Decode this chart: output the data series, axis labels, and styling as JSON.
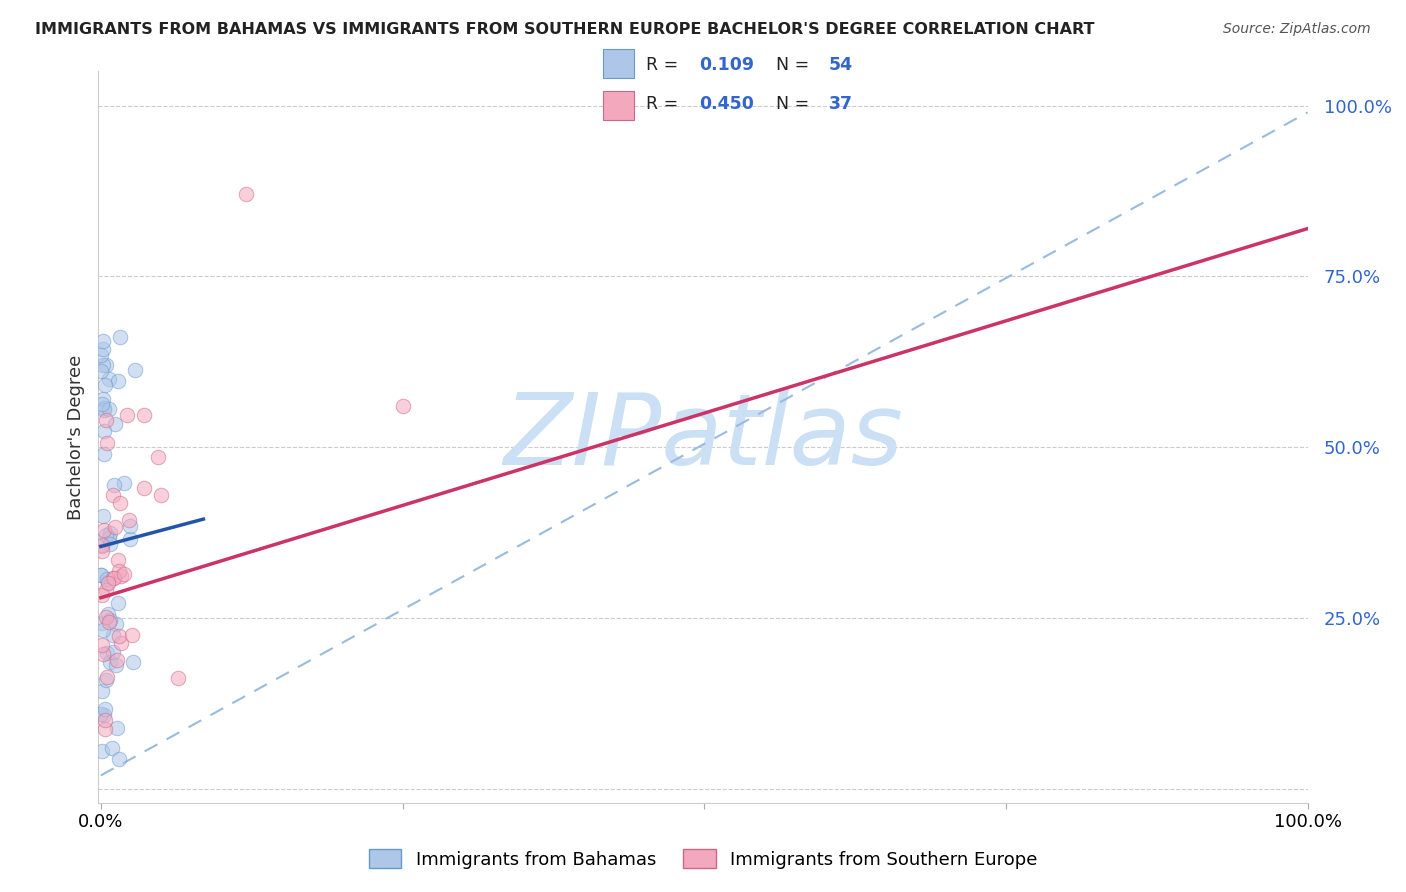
{
  "title": "IMMIGRANTS FROM BAHAMAS VS IMMIGRANTS FROM SOUTHERN EUROPE BACHELOR'S DEGREE CORRELATION CHART",
  "source": "Source: ZipAtlas.com",
  "ylabel": "Bachelor's Degree",
  "legend_entries": [
    {
      "label": "Immigrants from Bahamas",
      "color": "#aec6e8",
      "edge_color": "#6699cc",
      "R": 0.109,
      "N": 54
    },
    {
      "label": "Immigrants from Southern Europe",
      "color": "#f4a8be",
      "edge_color": "#cc6688",
      "R": 0.45,
      "N": 37
    }
  ],
  "background_color": "#ffffff",
  "watermark": "ZIPatlas",
  "watermark_color": "#cce0f5",
  "blue_line_x0": 0.0,
  "blue_line_x1": 0.085,
  "blue_line_y0": 0.355,
  "blue_line_y1": 0.395,
  "pink_line_x0": 0.0,
  "pink_line_x1": 1.0,
  "pink_line_y0": 0.28,
  "pink_line_y1": 0.82,
  "dashed_line_x0": 0.0,
  "dashed_line_x1": 1.0,
  "dashed_line_y0": 0.02,
  "dashed_line_y1": 0.99,
  "xlim_min": -0.002,
  "xlim_max": 1.0,
  "ylim_min": -0.02,
  "ylim_max": 1.05,
  "dot_size": 110,
  "dot_alpha": 0.55,
  "blue_color": "#2255aa",
  "pink_color": "#cc3366",
  "dashed_color": "#99bbdd"
}
